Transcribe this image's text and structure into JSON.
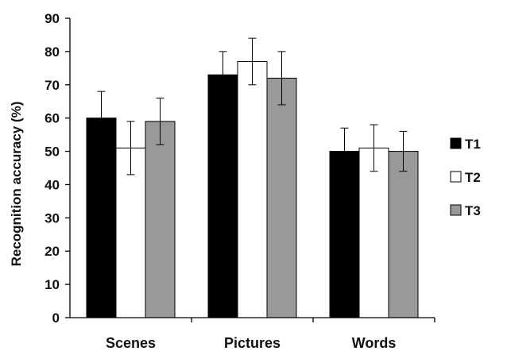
{
  "chart_data": {
    "type": "bar",
    "title": "",
    "xlabel": "",
    "ylabel": "Recognition accuracy (%)",
    "ylim": [
      0,
      90
    ],
    "yticks": [
      0,
      10,
      20,
      30,
      40,
      50,
      60,
      70,
      80,
      90
    ],
    "grid": false,
    "legend_position": "right",
    "categories": [
      "Scenes",
      "Pictures",
      "Words"
    ],
    "series": [
      {
        "name": "T1",
        "color": "#000000",
        "values": [
          60,
          73,
          50
        ],
        "error": [
          8,
          7,
          7
        ]
      },
      {
        "name": "T2",
        "color": "#ffffff",
        "values": [
          51,
          77,
          51
        ],
        "error": [
          8,
          7,
          7
        ]
      },
      {
        "name": "T3",
        "color": "#999999",
        "values": [
          59,
          72,
          50
        ],
        "error": [
          7,
          8,
          6
        ]
      }
    ]
  }
}
